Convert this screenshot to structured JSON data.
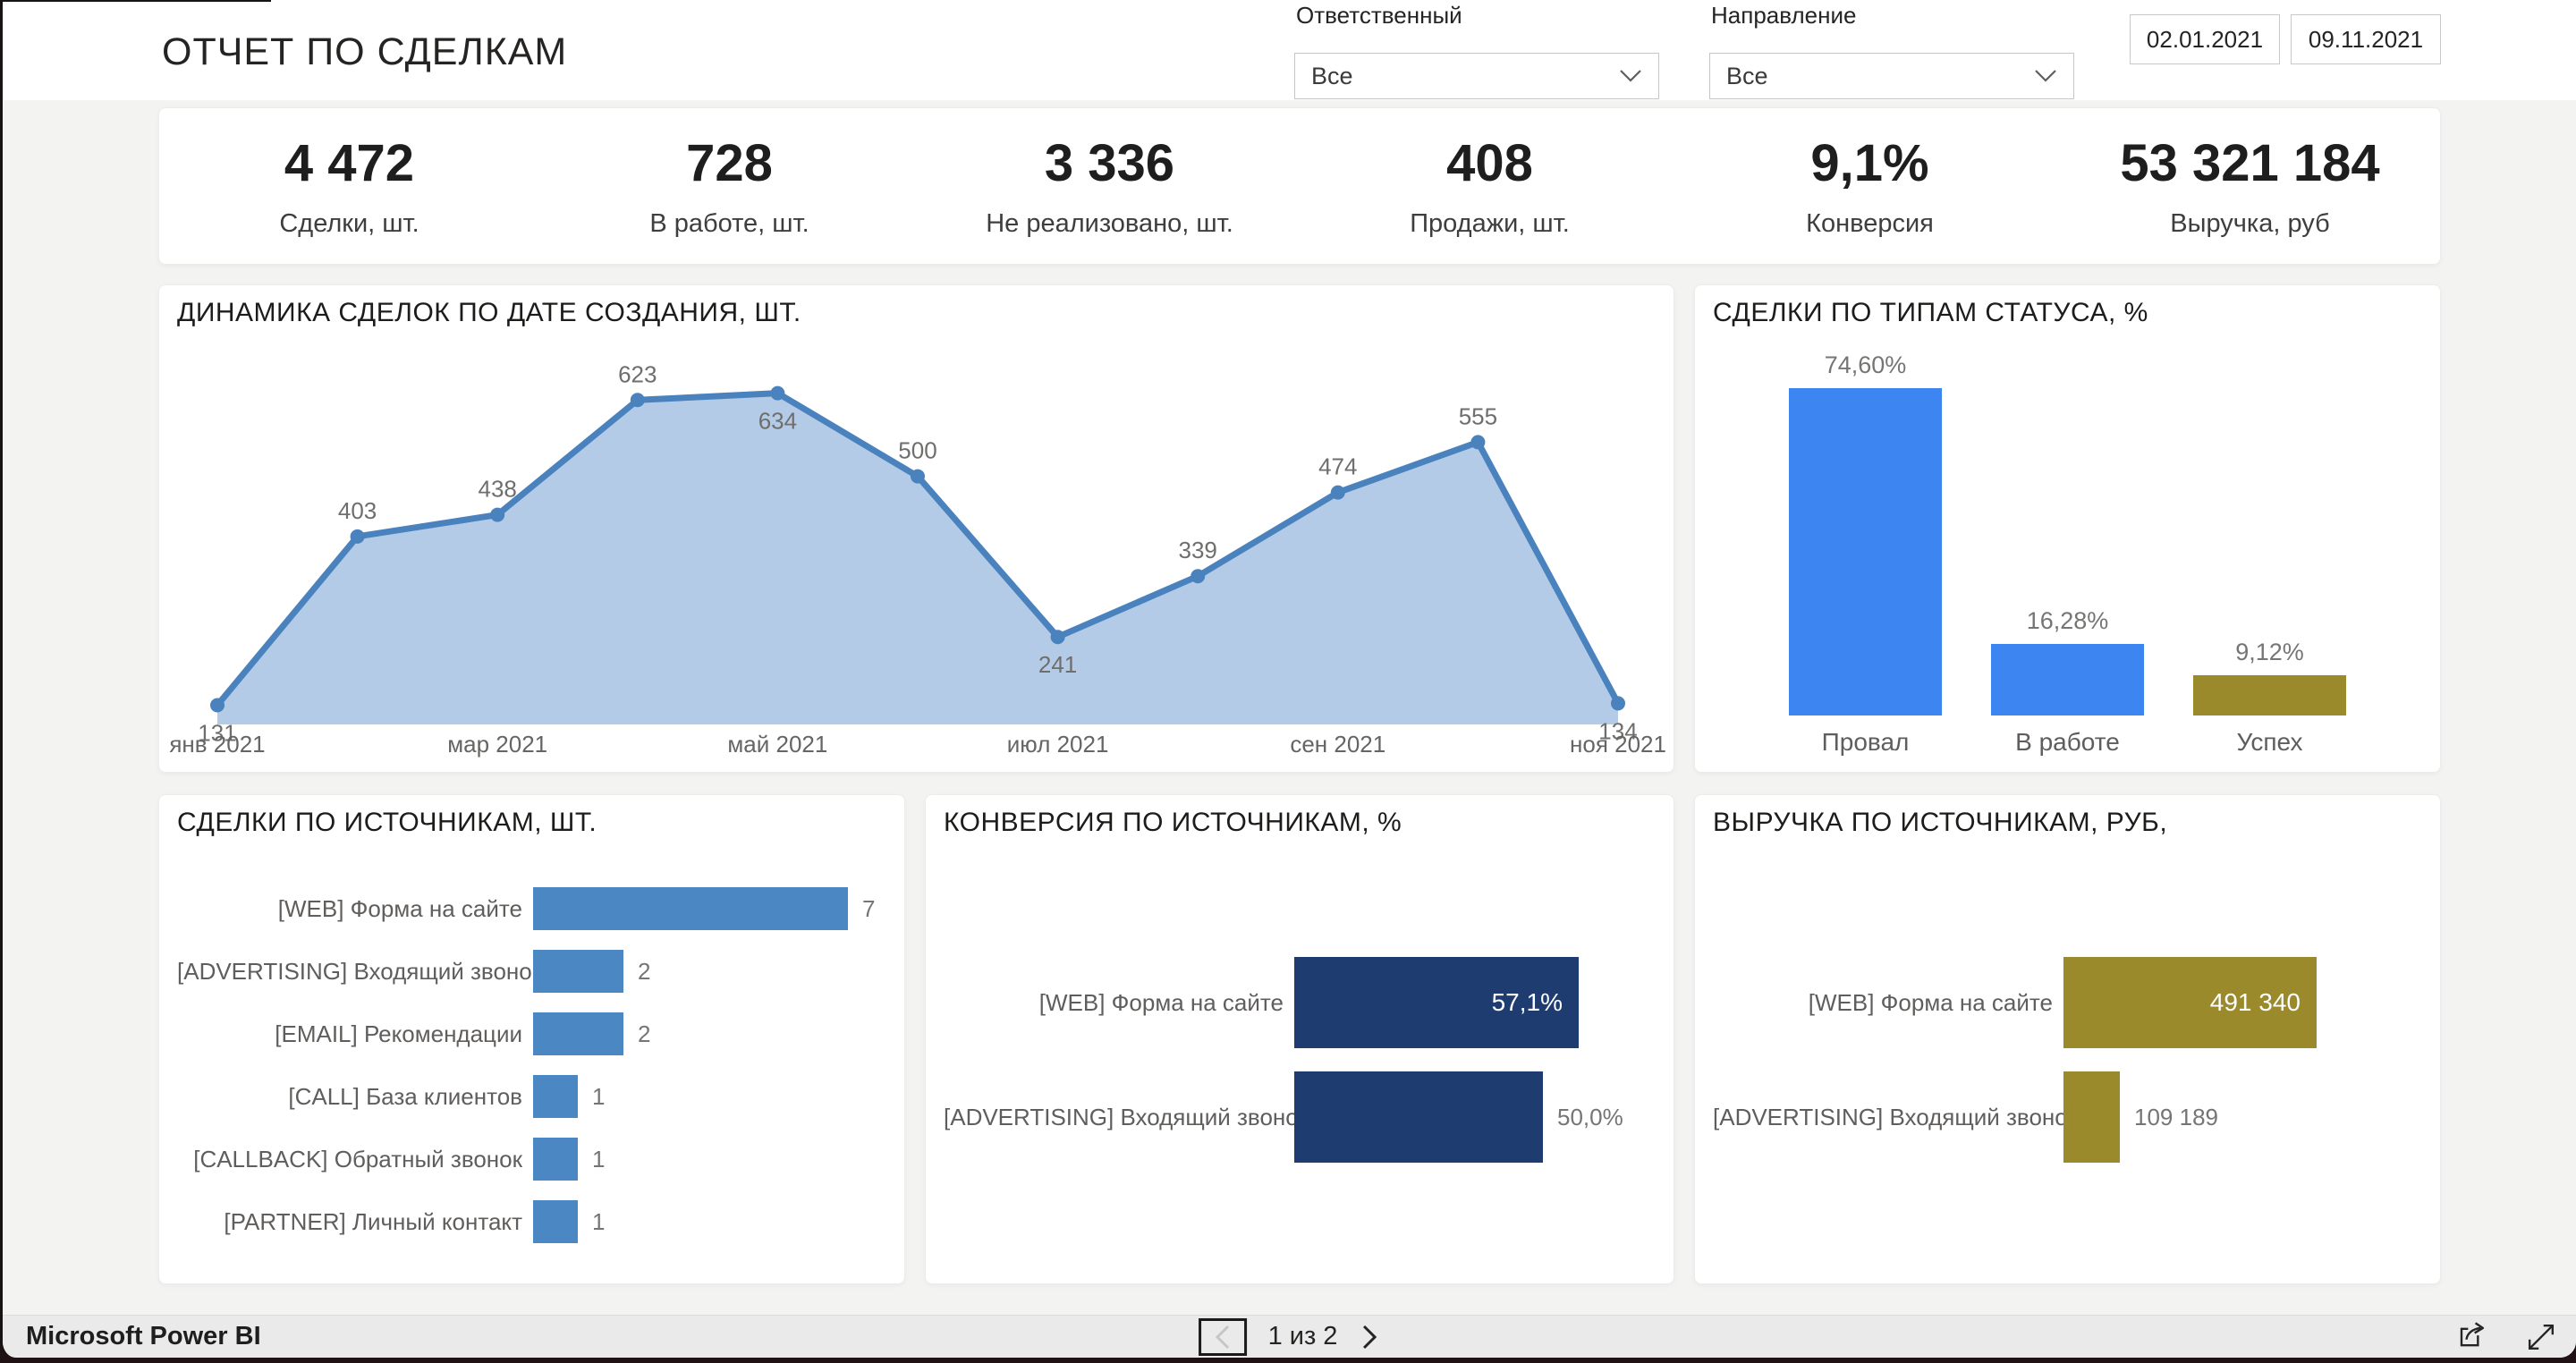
{
  "header": {
    "title": "ОТЧЕТ ПО СДЕЛКАМ",
    "filters": [
      {
        "label": "Ответственный",
        "value": "Все"
      },
      {
        "label": "Направление",
        "value": "Все"
      }
    ],
    "date_from": "02.01.2021",
    "date_to": "09.11.2021"
  },
  "kpis": [
    {
      "value": "4 472",
      "label": "Сделки, шт."
    },
    {
      "value": "728",
      "label": "В работе, шт."
    },
    {
      "value": "3 336",
      "label": "Не реализовано, шт."
    },
    {
      "value": "408",
      "label": "Продажи, шт."
    },
    {
      "value": "9,1%",
      "label": "Конверсия"
    },
    {
      "value": "53 321 184",
      "label": "Выручка, руб"
    }
  ],
  "chart_data": [
    {
      "type": "area",
      "title": "ДИНАМИКА СДЕЛОК ПО ДАТЕ СОЗДАНИЯ, ШТ.",
      "values": [
        131,
        403,
        438,
        623,
        634,
        500,
        241,
        339,
        474,
        555,
        134
      ],
      "value_labels": [
        "131",
        "403",
        "438",
        "623",
        "634",
        "500",
        "241",
        "339",
        "474",
        "555",
        "134"
      ],
      "label_positions": [
        "below",
        "above",
        "above",
        "above",
        "below",
        "above",
        "below",
        "above",
        "above",
        "above",
        "below"
      ],
      "x_tick_labels": [
        "янв 2021",
        "мар 2021",
        "май 2021",
        "июл 2021",
        "сен 2021",
        "ноя 2021"
      ],
      "x_tick_indices": [
        0,
        2,
        4,
        6,
        8,
        10
      ],
      "ylim": [
        100,
        707
      ],
      "grid": false,
      "legend": "none",
      "line_color": "#4A82BE",
      "fill_color": "#B3CBE6"
    },
    {
      "type": "bar",
      "title": "СДЕЛКИ ПО ТИПАМ СТАТУСА, %",
      "categories": [
        "Провал",
        "В работе",
        "Успех"
      ],
      "values": [
        74.6,
        16.28,
        9.12
      ],
      "value_labels": [
        "74,60%",
        "16,28%",
        "9,12%"
      ],
      "bar_colors": [
        "#3D85F1",
        "#3D85F1",
        "#9A8A2C"
      ],
      "ylim": [
        0,
        80
      ],
      "grid": false
    },
    {
      "type": "bar_horizontal",
      "title": "СДЕЛКИ ПО ИСТОЧНИКАМ, ШТ.",
      "categories": [
        "[WEB] Форма на сайте",
        "[ADVERTISING] Входящий звонок",
        "[EMAIL] Рекомендации",
        "[CALL] База клиентов",
        "[CALLBACK] Обратный звонок",
        "[PARTNER] Личный контакт"
      ],
      "values": [
        7,
        2,
        2,
        1,
        1,
        1
      ],
      "value_labels": [
        "7",
        "2",
        "2",
        "1",
        "1",
        "1"
      ],
      "label_inside": [
        false,
        false,
        false,
        false,
        false,
        false
      ],
      "bar_color": "#4B87C2",
      "xlim": [
        0,
        7
      ]
    },
    {
      "type": "bar_horizontal",
      "title": "КОНВЕРСИЯ ПО ИСТОЧНИКАМ, %",
      "categories": [
        "[WEB] Форма на сайте",
        "[ADVERTISING] Входящий звонок"
      ],
      "values": [
        57.1,
        50.0
      ],
      "value_labels": [
        "57,1%",
        "50,0%"
      ],
      "label_inside": [
        true,
        false
      ],
      "bar_color": "#1E3C70",
      "xlim": [
        0,
        60
      ]
    },
    {
      "type": "bar_horizontal",
      "title": "ВЫРУЧКА ПО ИСТОЧНИКАМ, РУБ,",
      "categories": [
        "[WEB] Форма на сайте",
        "[ADVERTISING] Входящий звонок"
      ],
      "values": [
        491340,
        109189
      ],
      "value_labels": [
        "491 340",
        "109 189"
      ],
      "label_inside": [
        true,
        false
      ],
      "bar_color": "#9A8A2C",
      "xlim": [
        0,
        520000
      ]
    }
  ],
  "footer": {
    "brand": "Microsoft Power BI",
    "page_label": "1 из 2",
    "icons": [
      "chevron-left-icon",
      "chevron-right-icon",
      "share-icon",
      "fullscreen-icon"
    ]
  },
  "theme": {
    "canvas_bg": "#F3F3F2",
    "card_bg": "#FFFFFF",
    "footer_bg": "#EAEAEA",
    "text_dark": "#252423",
    "text_gray": "#605E5C",
    "value_gray": "#767574"
  }
}
